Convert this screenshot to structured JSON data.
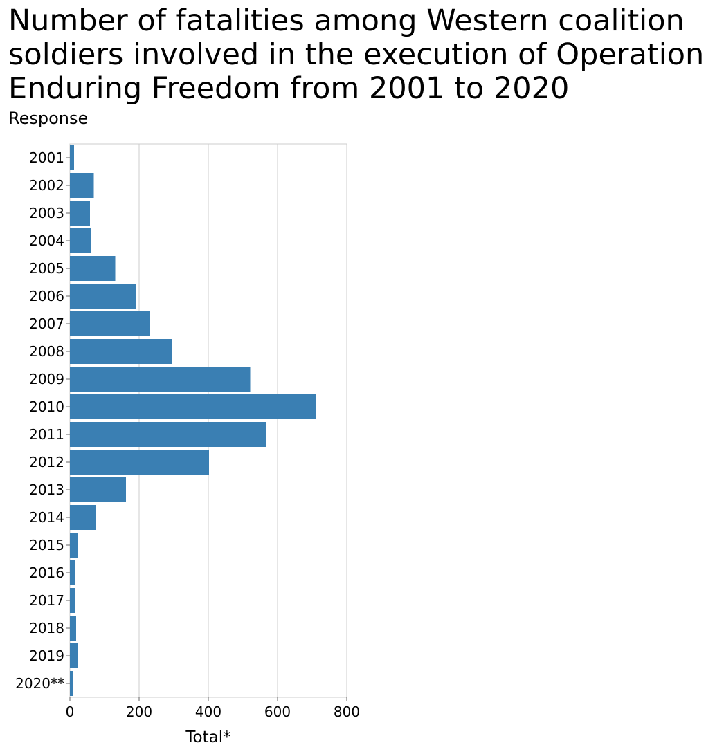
{
  "chart_data": {
    "type": "bar",
    "orientation": "horizontal",
    "title": "Number of fatalities among Western coalition soldiers involved in the execution of Operation Enduring Freedom from 2001 to 2020",
    "subtitle": "Response",
    "xlabel": "Total*",
    "ylabel": "",
    "categories": [
      "2001",
      "2002",
      "2003",
      "2004",
      "2005",
      "2006",
      "2007",
      "2008",
      "2009",
      "2010",
      "2011",
      "2012",
      "2013",
      "2014",
      "2015",
      "2016",
      "2017",
      "2018",
      "2019",
      "2020**"
    ],
    "values": [
      12,
      69,
      58,
      60,
      131,
      191,
      232,
      295,
      521,
      711,
      566,
      402,
      162,
      75,
      24,
      15,
      16,
      18,
      24,
      8
    ],
    "xlim": [
      0,
      800
    ],
    "xticks": [
      0,
      200,
      400,
      600,
      800
    ],
    "grid": true,
    "bar_color": "#3a7fb3"
  }
}
